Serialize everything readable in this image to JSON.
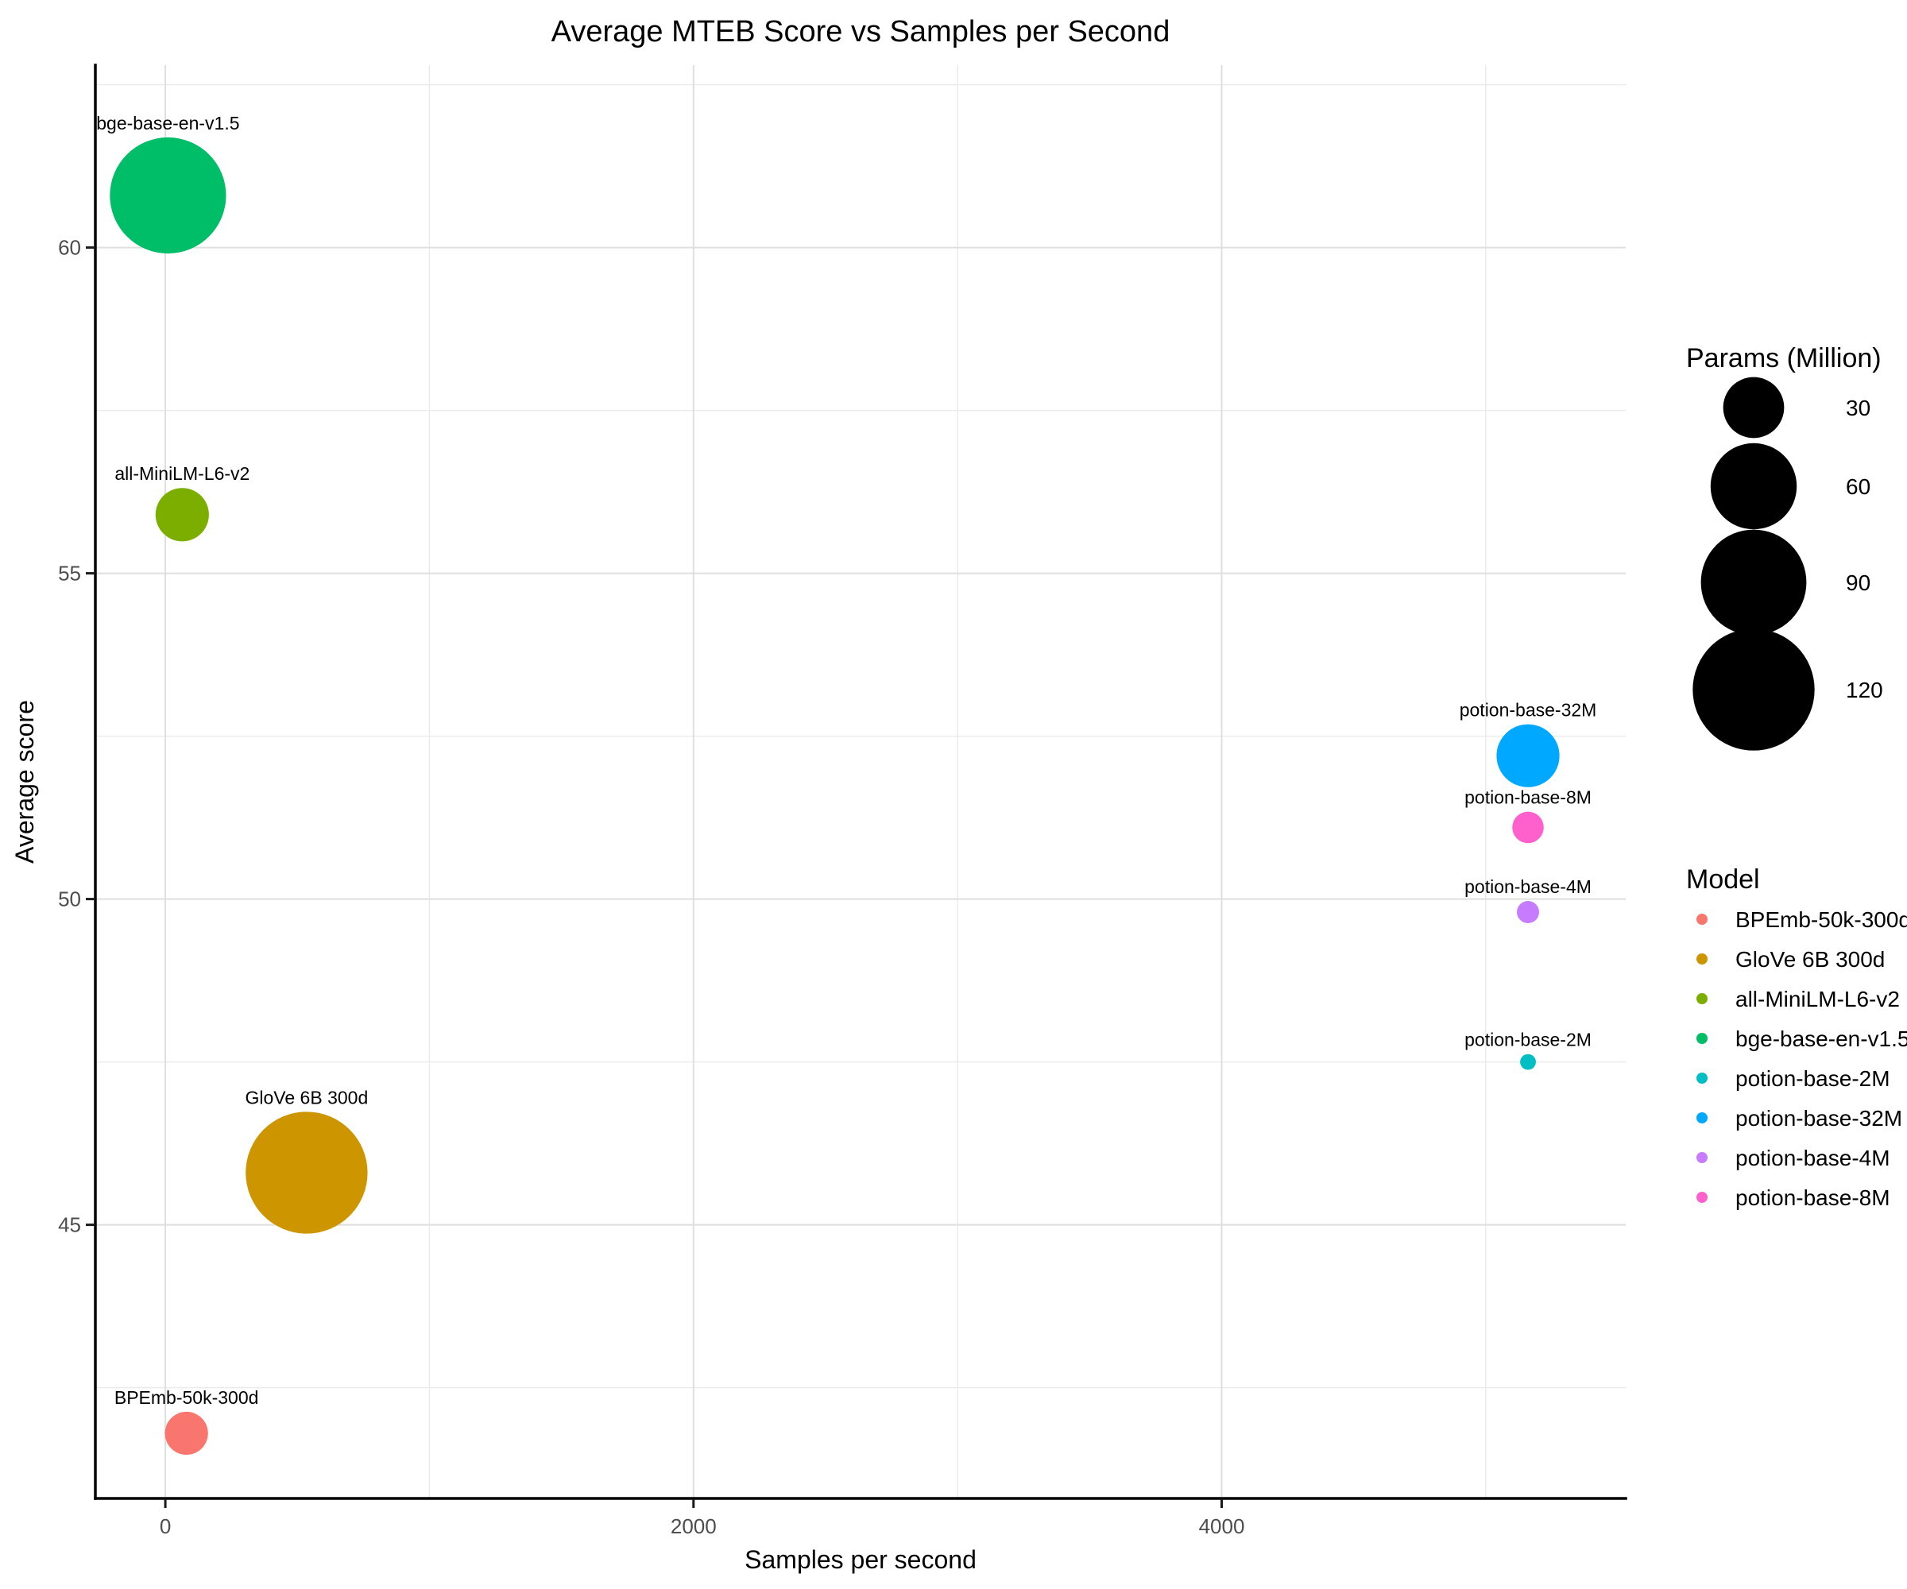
{
  "chart_data": {
    "type": "scatter",
    "title": "Average MTEB Score vs Samples per Second",
    "xlabel": "Samples per second",
    "ylabel": "Average score",
    "x_ticks": [
      0,
      2000,
      4000
    ],
    "x_minor_gridlines": [
      1000,
      3000,
      5000
    ],
    "y_ticks": [
      45,
      50,
      55,
      60
    ],
    "y_minor_gridlines": [
      42.5,
      47.5,
      52.5,
      57.5,
      62.5
    ],
    "xlim": [
      -265,
      5530
    ],
    "ylim": [
      40.8,
      62.8
    ],
    "grid": "major and minor, light grey on white",
    "legend_position": "right",
    "size_legend": {
      "title": "Params (Million)",
      "values": [
        30,
        60,
        90,
        120
      ],
      "swatch_color": "#000000"
    },
    "color_legend_title": "Model",
    "series": [
      {
        "model": "BPEmb-50k-300d",
        "samples_per_second": 80,
        "avg_score": 41.8,
        "params_million": 15,
        "color": "#F8766D"
      },
      {
        "model": "GloVe 6B 300d",
        "samples_per_second": 535,
        "avg_score": 45.8,
        "params_million": 120,
        "color": "#CD9600"
      },
      {
        "model": "all-MiniLM-L6-v2",
        "samples_per_second": 64,
        "avg_score": 55.9,
        "params_million": 23,
        "color": "#7CAE00"
      },
      {
        "model": "bge-base-en-v1.5",
        "samples_per_second": 10,
        "avg_score": 60.8,
        "params_million": 109,
        "color": "#00BE67"
      },
      {
        "model": "potion-base-2M",
        "samples_per_second": 5160,
        "avg_score": 47.5,
        "params_million": 2,
        "color": "#00BFC4"
      },
      {
        "model": "potion-base-32M",
        "samples_per_second": 5160,
        "avg_score": 52.2,
        "params_million": 32,
        "color": "#00A9FF"
      },
      {
        "model": "potion-base-4M",
        "samples_per_second": 5160,
        "avg_score": 49.8,
        "params_million": 4,
        "color": "#C77CFF"
      },
      {
        "model": "potion-base-8M",
        "samples_per_second": 5160,
        "avg_score": 51.1,
        "params_million": 8,
        "color": "#FF61CC"
      }
    ]
  }
}
